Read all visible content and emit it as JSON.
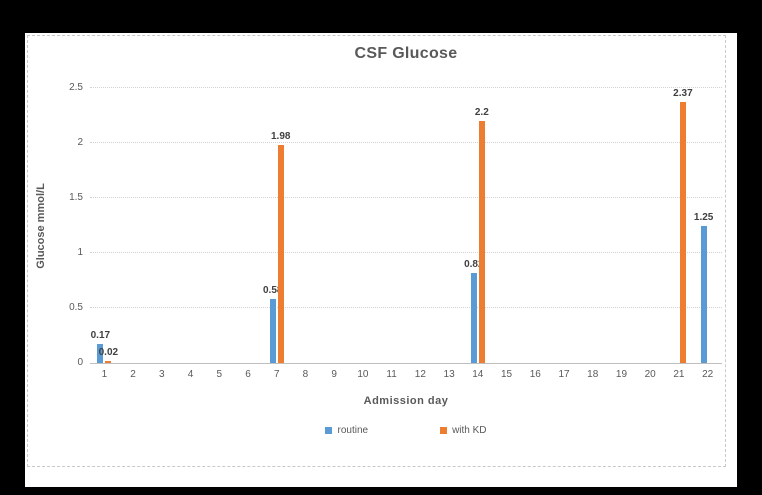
{
  "window": {
    "background_color": "#000000",
    "panel_background_color": "#ffffff",
    "panel_border_color": "#c9c9c9"
  },
  "chart_data": {
    "type": "bar",
    "title": "CSF Glucose",
    "xlabel": "Admission day",
    "ylabel": "Glucose mmol/L",
    "categories": [
      "1",
      "2",
      "3",
      "4",
      "5",
      "6",
      "7",
      "8",
      "9",
      "10",
      "11",
      "12",
      "13",
      "14",
      "15",
      "16",
      "17",
      "18",
      "19",
      "20",
      "21",
      "22"
    ],
    "ylim": [
      0,
      2.5
    ],
    "yticks": [
      "0",
      "0.5",
      "1",
      "1.5",
      "2",
      "2.5"
    ],
    "grid": true,
    "legend_position": "bottom",
    "text_color": "#595959",
    "gridline_color": "#d2d2d2",
    "axis_line_color": "#bfbfbf",
    "data_label_color": "#404040",
    "series": [
      {
        "name": "routine",
        "color": "#5b9bd5",
        "points": [
          {
            "day": 1,
            "value": 0.17,
            "label": "0.17"
          },
          {
            "day": 7,
            "value": 0.58,
            "label": "0.58"
          },
          {
            "day": 14,
            "value": 0.82,
            "label": "0.82"
          },
          {
            "day": 22,
            "value": 1.25,
            "label": "1.25"
          }
        ]
      },
      {
        "name": "with KD",
        "color": "#ed7d31",
        "points": [
          {
            "day": 1,
            "value": 0.02,
            "label": "0.02"
          },
          {
            "day": 7,
            "value": 1.98,
            "label": "1.98"
          },
          {
            "day": 14,
            "value": 2.2,
            "label": "2.2"
          },
          {
            "day": 21,
            "value": 2.37,
            "label": "2.37"
          }
        ]
      }
    ]
  }
}
